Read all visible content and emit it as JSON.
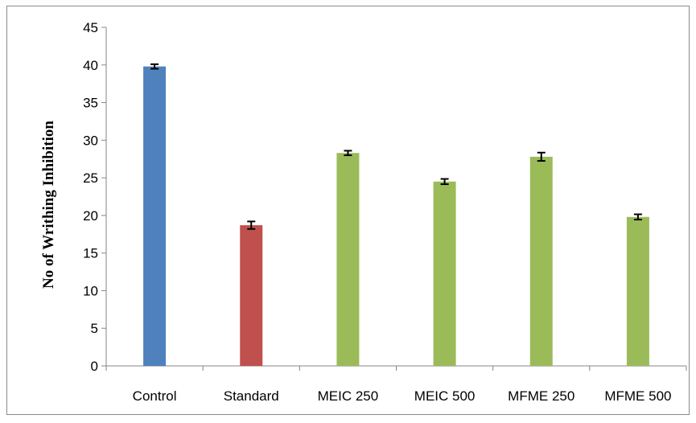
{
  "chart_data": {
    "type": "bar",
    "title": "",
    "xlabel": "",
    "ylabel": "No of  Writhing Inhibition",
    "ylim": [
      0,
      45
    ],
    "yticks": [
      0,
      5,
      10,
      15,
      20,
      25,
      30,
      35,
      40,
      45
    ],
    "ytick_labels": [
      "0",
      "5",
      "10",
      "15",
      "20",
      "25",
      "30",
      "35",
      "40",
      "45"
    ],
    "categories": [
      "Control",
      "Standard",
      "MEIC 250",
      "MEIC 500",
      "MFME 250",
      "MFME 500"
    ],
    "values": [
      39.8,
      18.7,
      28.3,
      24.5,
      27.8,
      19.8
    ],
    "errors": [
      0.3,
      0.5,
      0.3,
      0.35,
      0.55,
      0.35
    ],
    "colors": [
      "#4f81bd",
      "#c0504d",
      "#9bbb59",
      "#9bbb59",
      "#9bbb59",
      "#9bbb59"
    ],
    "grid": false,
    "legend": "none"
  }
}
